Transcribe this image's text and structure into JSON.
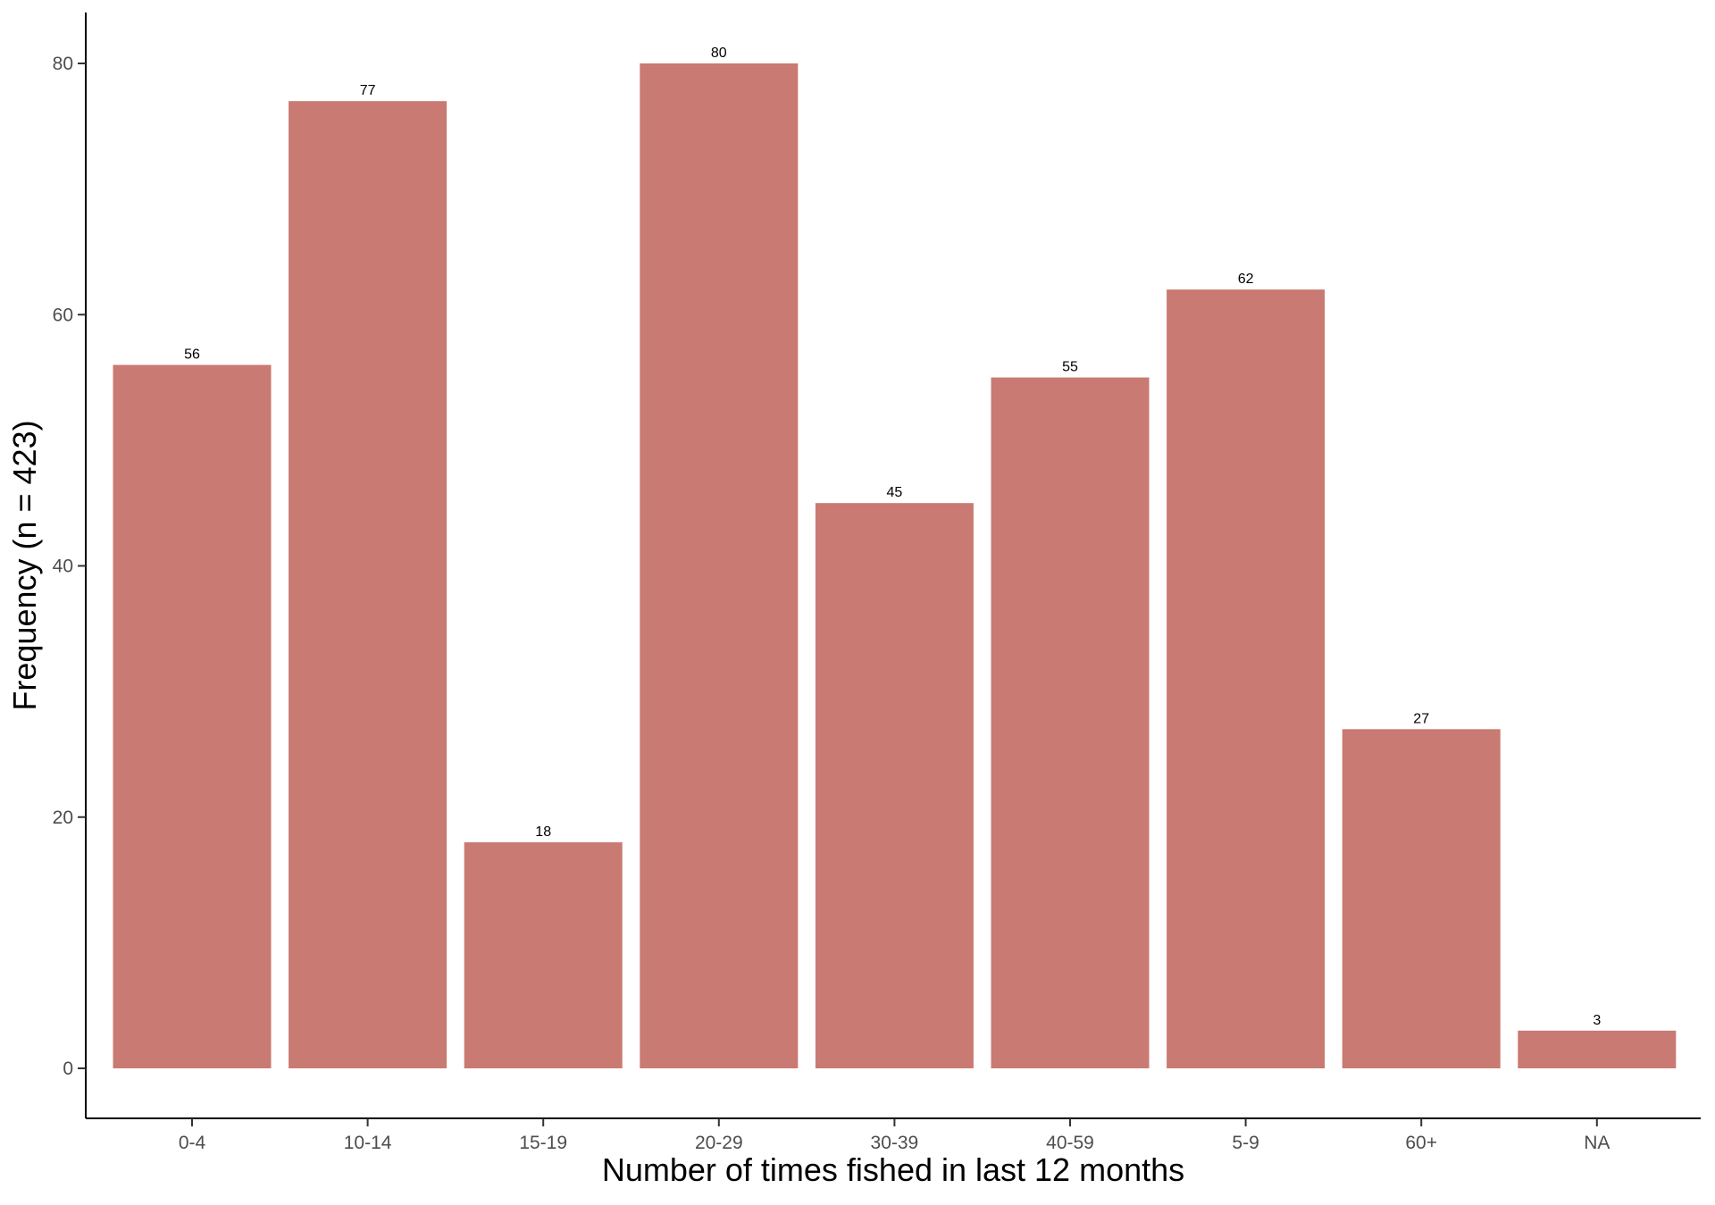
{
  "chart_data": {
    "type": "bar",
    "categories": [
      "0-4",
      "10-14",
      "15-19",
      "20-29",
      "30-39",
      "40-59",
      "5-9",
      "60+",
      "NA"
    ],
    "values": [
      56,
      77,
      18,
      80,
      45,
      55,
      62,
      27,
      3
    ],
    "value_labels": [
      "56",
      "77",
      "18",
      "80",
      "45",
      "55",
      "62",
      "27",
      "3"
    ],
    "title": "",
    "xlabel": "Number of times fished in last 12 months",
    "ylabel": "Frequency (n = 423)",
    "ylim": [
      0,
      84
    ],
    "yticks": [
      0,
      20,
      40,
      60,
      80
    ],
    "grid": false,
    "legend": "none",
    "bar_color": "#c97a72"
  }
}
